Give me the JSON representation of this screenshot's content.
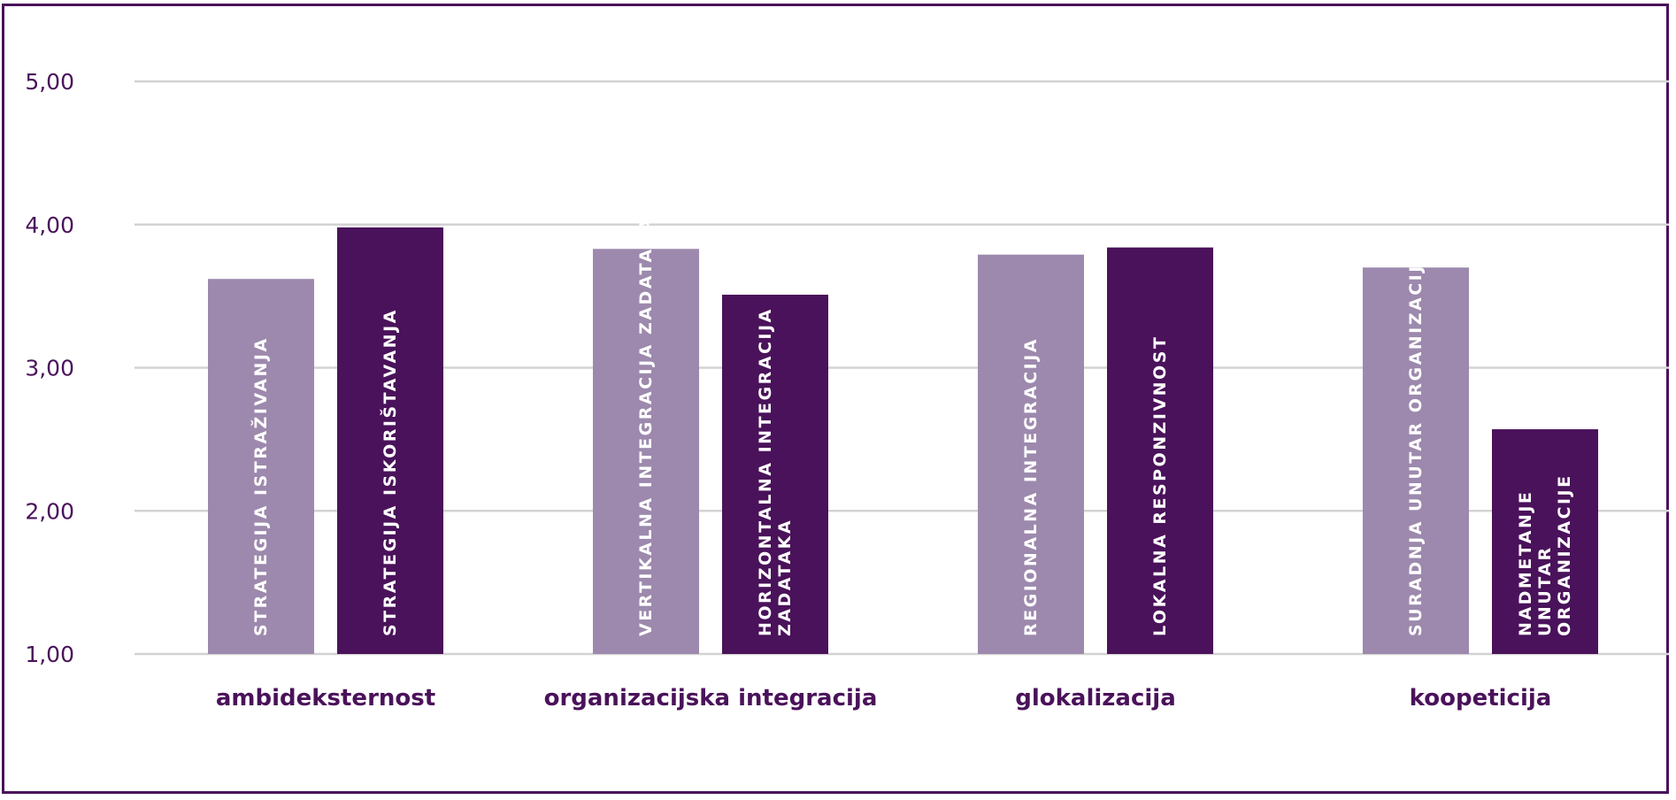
{
  "colors": {
    "light": "#9d89ad",
    "dark": "#4a125a",
    "text": "#4a125a",
    "grid": "#d3d3d3",
    "frame": "#4a125a"
  },
  "chart_data": {
    "type": "bar",
    "ylim": [
      1,
      5
    ],
    "yticks": [
      {
        "value": 1,
        "label": "1,00"
      },
      {
        "value": 2,
        "label": "2,00"
      },
      {
        "value": 3,
        "label": "3,00"
      },
      {
        "value": 4,
        "label": "4,00"
      },
      {
        "value": 5,
        "label": "5,00"
      }
    ],
    "grid": true,
    "legend": "none",
    "groups": [
      {
        "category": "ambideksternost",
        "bars": [
          {
            "label": [
              "STRATEGIJA ISTRAŽIVANJA"
            ],
            "value": 3.62,
            "shade": "light"
          },
          {
            "label": [
              "STRATEGIJA ISKORIŠTAVANJA"
            ],
            "value": 3.98,
            "shade": "dark"
          }
        ]
      },
      {
        "category": "organizacijska integracija",
        "bars": [
          {
            "label": [
              "VERTIKALNA INTEGRACIJA ZADATAKA"
            ],
            "value": 3.83,
            "shade": "light"
          },
          {
            "label": [
              "HORIZONTALNA INTEGRACIJA",
              "ZADATAKA"
            ],
            "value": 3.51,
            "shade": "dark"
          }
        ]
      },
      {
        "category": "glokalizacija",
        "bars": [
          {
            "label": [
              "REGIONALNA INTEGRACIJA"
            ],
            "value": 3.79,
            "shade": "light"
          },
          {
            "label": [
              "LOKALNA RESPONZIVNOST"
            ],
            "value": 3.84,
            "shade": "dark"
          }
        ]
      },
      {
        "category": "koopeticija",
        "bars": [
          {
            "label": [
              "SURADNJA UNUTAR ORGANIZACIJE"
            ],
            "value": 3.7,
            "shade": "light"
          },
          {
            "label": [
              "NADMETANJE",
              "UNUTAR",
              "ORGANIZACIJE"
            ],
            "value": 2.57,
            "shade": "dark"
          }
        ]
      }
    ]
  }
}
